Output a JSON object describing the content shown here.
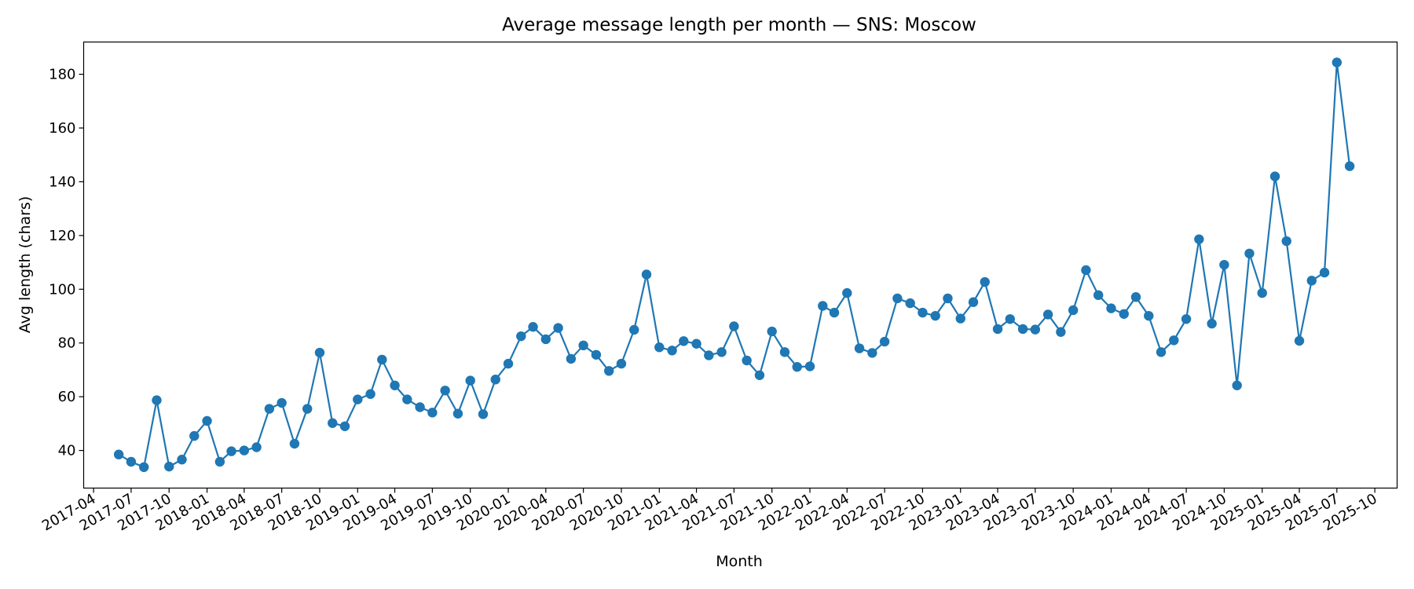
{
  "chart_data": {
    "type": "line",
    "title": "Average message length per month — SNS: Moscow",
    "xlabel": "Month",
    "ylabel": "Avg length (chars)",
    "ylim": [
      26,
      192
    ],
    "xlim": [
      "2017-03-08",
      "2025-11-24"
    ],
    "yticks": [
      40,
      60,
      80,
      100,
      120,
      140,
      160,
      180
    ],
    "xticks": [
      "2017-04",
      "2017-07",
      "2017-10",
      "2018-01",
      "2018-04",
      "2018-07",
      "2018-10",
      "2019-01",
      "2019-04",
      "2019-07",
      "2019-10",
      "2020-01",
      "2020-04",
      "2020-07",
      "2020-10",
      "2021-01",
      "2021-04",
      "2021-07",
      "2021-10",
      "2022-01",
      "2022-04",
      "2022-07",
      "2022-10",
      "2023-01",
      "2023-04",
      "2023-07",
      "2023-10",
      "2024-01",
      "2024-04",
      "2024-07",
      "2024-10",
      "2025-01",
      "2025-04",
      "2025-07",
      "2025-10"
    ],
    "grid": false,
    "color": "#1f77b4",
    "marker": "circle",
    "series": [
      {
        "x": [
          "2017-06",
          "2017-07",
          "2017-08",
          "2017-09",
          "2017-10",
          "2017-11",
          "2017-12",
          "2018-01",
          "2018-02",
          "2018-03",
          "2018-04",
          "2018-05",
          "2018-06",
          "2018-07",
          "2018-08",
          "2018-09",
          "2018-10",
          "2018-11",
          "2018-12",
          "2019-01",
          "2019-02",
          "2019-03",
          "2019-04",
          "2019-05",
          "2019-06",
          "2019-07",
          "2019-08",
          "2019-09",
          "2019-10",
          "2019-11",
          "2019-12",
          "2020-01",
          "2020-02",
          "2020-03",
          "2020-04",
          "2020-05",
          "2020-06",
          "2020-07",
          "2020-08",
          "2020-09",
          "2020-10",
          "2020-11",
          "2020-12",
          "2021-01",
          "2021-02",
          "2021-03",
          "2021-04",
          "2021-05",
          "2021-06",
          "2021-07",
          "2021-08",
          "2021-09",
          "2021-10",
          "2021-11",
          "2021-12",
          "2022-01",
          "2022-02",
          "2022-03",
          "2022-04",
          "2022-05",
          "2022-06",
          "2022-07",
          "2022-08",
          "2022-09",
          "2022-10",
          "2022-11",
          "2022-12",
          "2023-01",
          "2023-02",
          "2023-03",
          "2023-04",
          "2023-05",
          "2023-06",
          "2023-07",
          "2023-08",
          "2023-09",
          "2023-10",
          "2023-11",
          "2023-12",
          "2024-01",
          "2024-02",
          "2024-03",
          "2024-04",
          "2024-05",
          "2024-06",
          "2024-07",
          "2024-08",
          "2024-09",
          "2024-10",
          "2024-11",
          "2024-12",
          "2025-01",
          "2025-02",
          "2025-03",
          "2025-04",
          "2025-05",
          "2025-06",
          "2025-07",
          "2025-08"
        ],
        "y": [
          38.5,
          35.8,
          33.8,
          58.7,
          34.0,
          36.6,
          45.4,
          51.0,
          35.8,
          39.7,
          40.0,
          41.2,
          55.5,
          57.7,
          42.5,
          55.5,
          76.4,
          50.2,
          49.0,
          59.0,
          61.0,
          73.8,
          64.2,
          59.0,
          56.1,
          54.1,
          62.3,
          53.7,
          66.0,
          53.5,
          66.4,
          72.3,
          82.5,
          86.0,
          81.4,
          85.6,
          74.1,
          79.1,
          75.6,
          69.6,
          72.3,
          84.9,
          105.5,
          78.4,
          77.2,
          80.7,
          79.7,
          75.4,
          76.6,
          86.2,
          73.5,
          68.0,
          84.3,
          76.6,
          71.1,
          71.3,
          93.8,
          91.3,
          98.6,
          78.0,
          76.3,
          80.5,
          96.6,
          94.8,
          91.3,
          90.1,
          96.6,
          89.1,
          95.2,
          102.7,
          85.2,
          88.9,
          85.2,
          85.0,
          90.6,
          84.1,
          92.2,
          107.1,
          97.8,
          92.9,
          90.8,
          97.1,
          90.1,
          76.6,
          81.0,
          88.9,
          118.6,
          87.2,
          109.1,
          64.2,
          113.3,
          98.6,
          142.0,
          117.9,
          80.8,
          103.2,
          106.2,
          184.4,
          145.8
        ]
      }
    ]
  }
}
